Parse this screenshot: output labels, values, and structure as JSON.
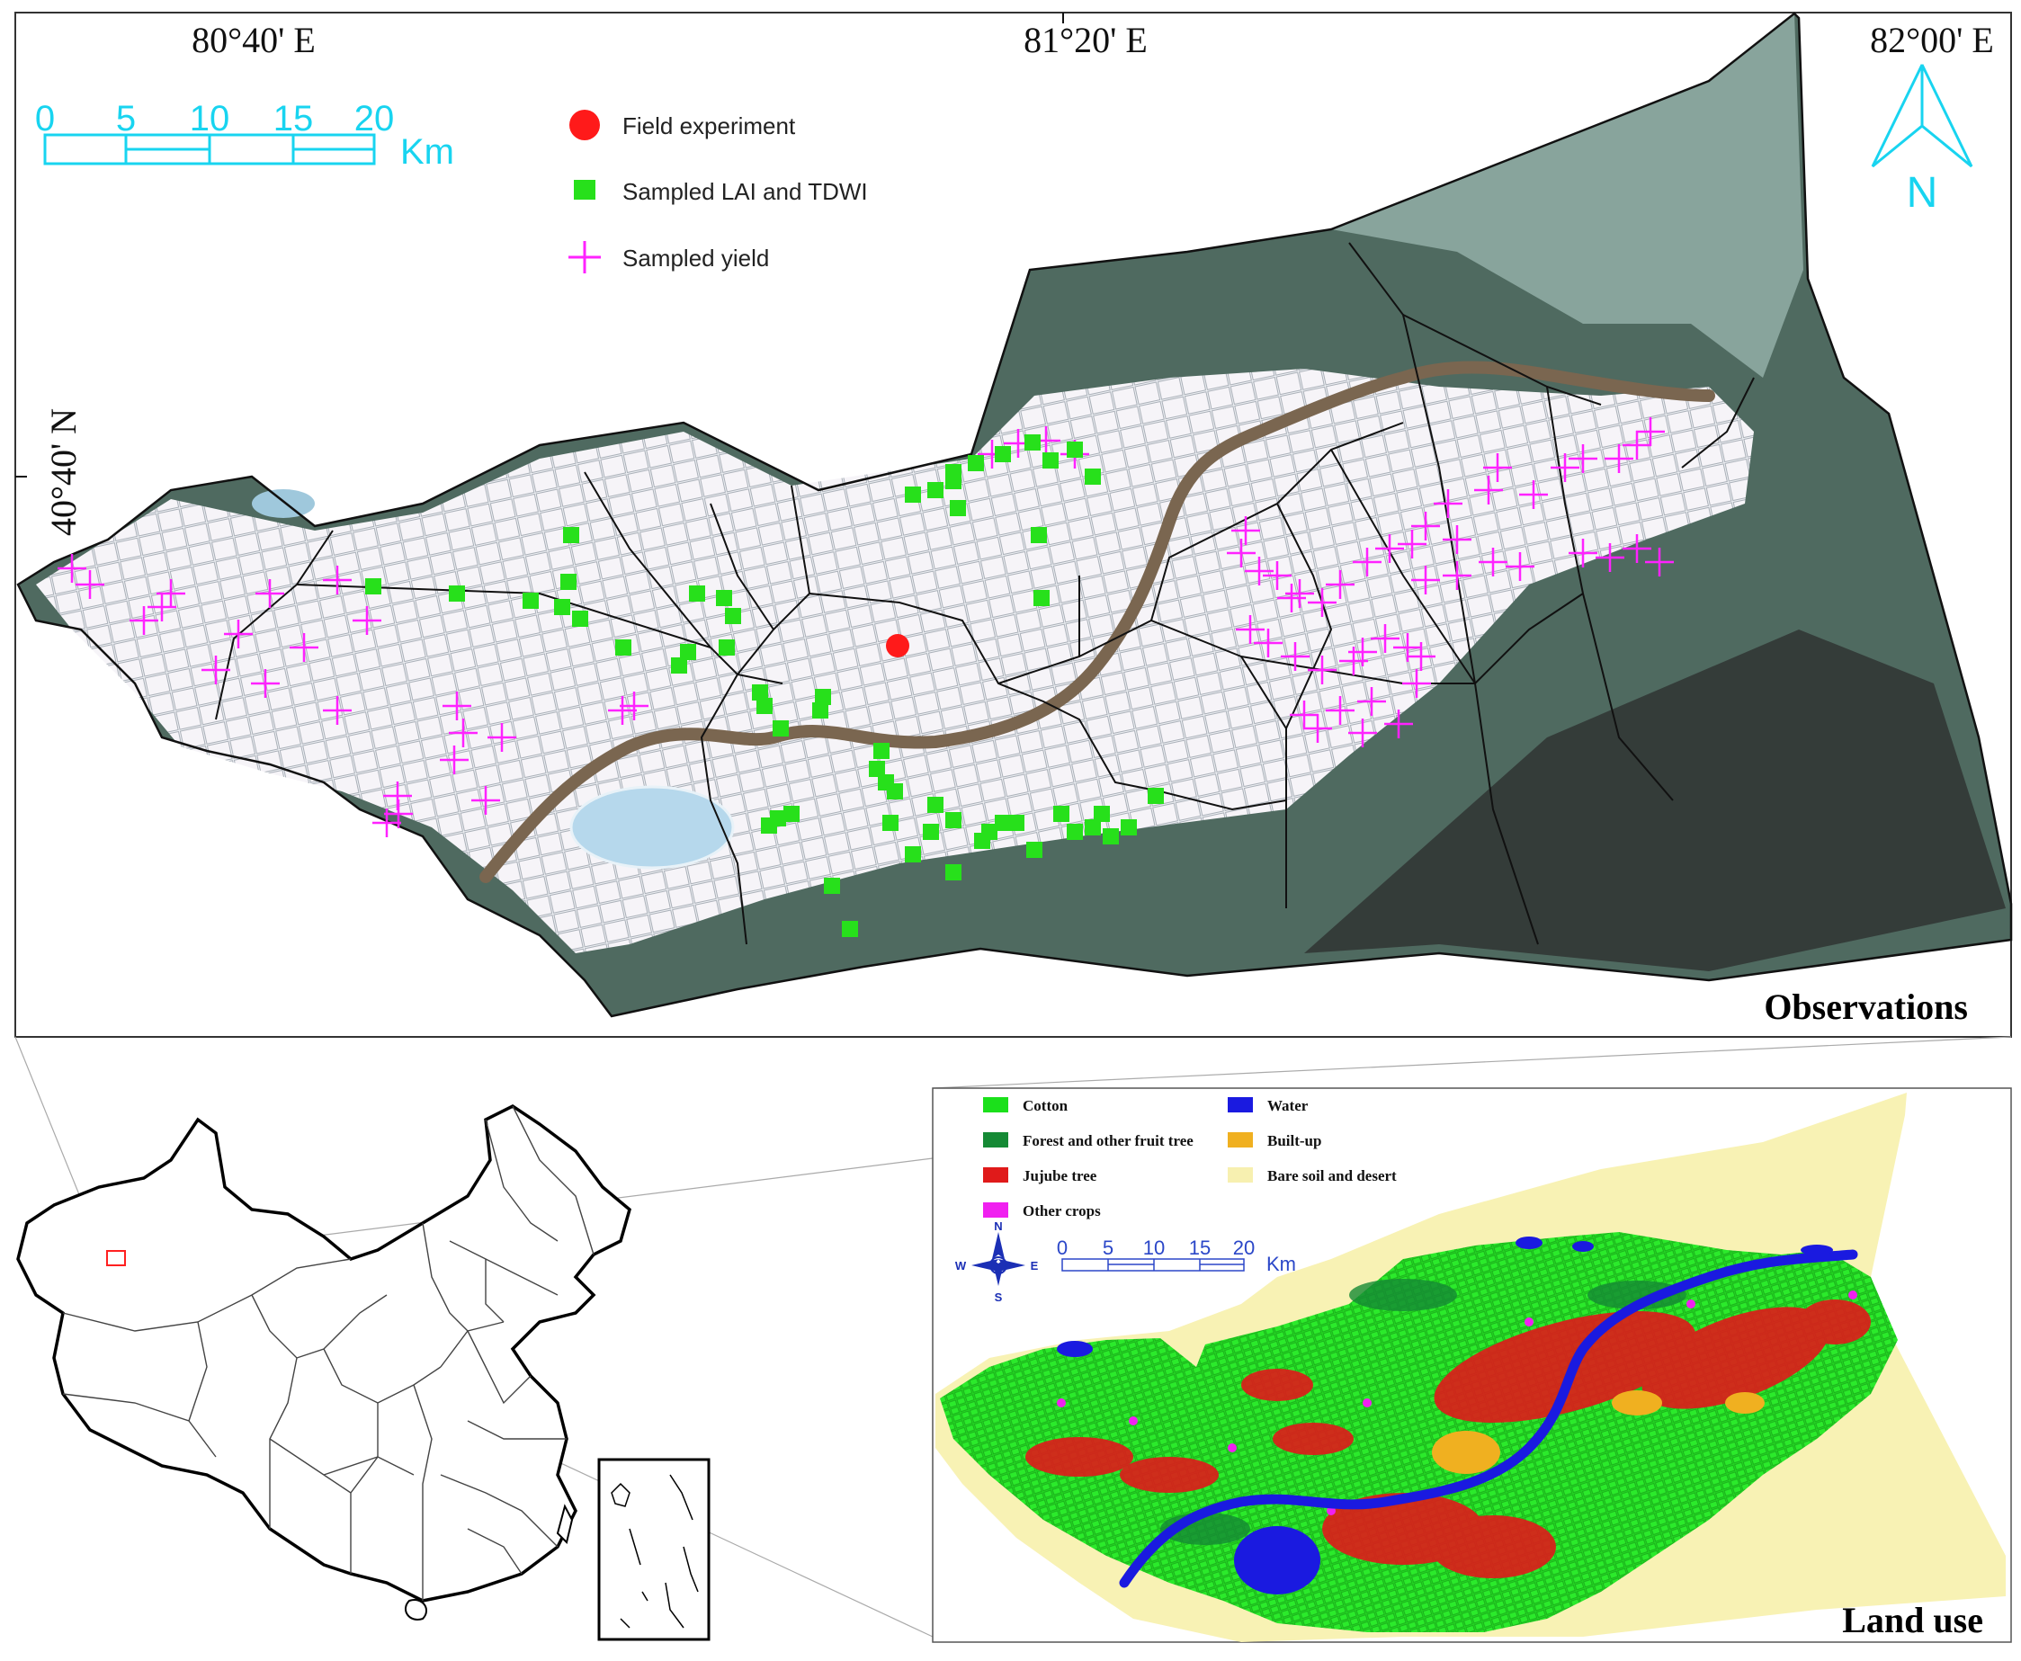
{
  "observations_panel": {
    "title": "Observations",
    "coordinates": {
      "lon_labels": [
        "80°40' E",
        "81°20' E",
        "82°00' E"
      ],
      "lat_label": "40°40' N"
    },
    "scale_bar": {
      "ticks": [
        "0",
        "5",
        "10",
        "15",
        "20"
      ],
      "unit": "Km"
    },
    "north_label": "N",
    "legend": {
      "field_experiment": "Field experiment",
      "sampled_lai_tdwi": "Sampled LAI and TDWI",
      "sampled_yield": "Sampled  yield"
    },
    "colors": {
      "field_experiment": "#ff1a1a",
      "sampled_lai_tdwi": "#27e01b",
      "sampled_yield": "#ff22ff",
      "scale_and_north": "#18d4f0"
    }
  },
  "land_use_panel": {
    "title": "Land use",
    "legend": [
      {
        "label": "Cotton",
        "color": "#1be01b"
      },
      {
        "label": "Water",
        "color": "#1a1ae0"
      },
      {
        "label": "Forest and other fruit tree",
        "color": "#158a35"
      },
      {
        "label": "Built-up",
        "color": "#f0b020"
      },
      {
        "label": "Jujube tree",
        "color": "#e01a1a"
      },
      {
        "label": "Bare soil and desert",
        "color": "#f7f0b0"
      },
      {
        "label": "Other crops",
        "color": "#f020f0"
      }
    ],
    "compass": {
      "n": "N",
      "s": "S",
      "e": "E",
      "w": "W"
    },
    "scale_bar": {
      "ticks": [
        "0",
        "5",
        "10",
        "15",
        "20"
      ],
      "unit": "Km"
    }
  },
  "inset_map": {
    "study_area_marker_color": "#ff2020"
  }
}
